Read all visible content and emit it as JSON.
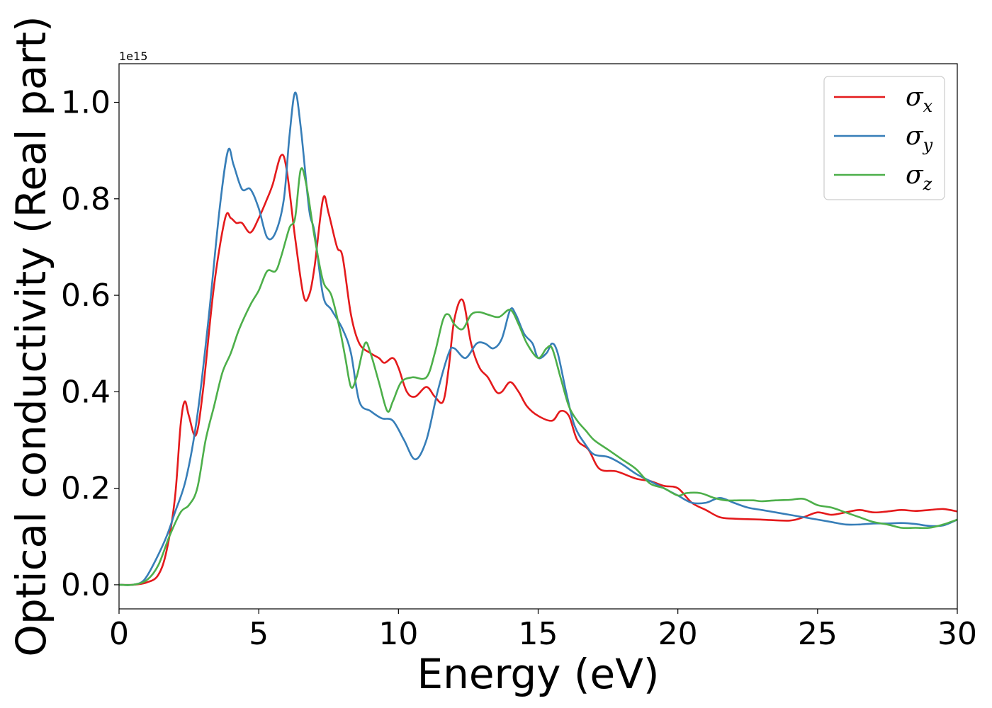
{
  "chart_data": {
    "type": "line",
    "title": "",
    "xlabel": "Energy (eV)",
    "ylabel": "Optical conductivity (Real part)",
    "y_offset_label": "1e15",
    "xlim": [
      0,
      30
    ],
    "ylim": [
      -0.05,
      1.08
    ],
    "x_ticks": [
      0,
      5,
      10,
      15,
      20,
      25,
      30
    ],
    "x_tick_labels": [
      "0",
      "5",
      "10",
      "15",
      "20",
      "25",
      "30"
    ],
    "y_ticks": [
      0.0,
      0.2,
      0.4,
      0.6,
      0.8,
      1.0
    ],
    "y_tick_labels": [
      "0.0",
      "0.2",
      "0.4",
      "0.6",
      "0.8",
      "1.0"
    ],
    "grid": false,
    "legend_position": "top-right",
    "series": [
      {
        "name": "σx",
        "legend_base": "σ",
        "legend_sub": "x",
        "color": "#e41a1c",
        "points": [
          [
            0,
            0
          ],
          [
            0.5,
            0
          ],
          [
            1,
            0.005
          ],
          [
            1.4,
            0.02
          ],
          [
            1.7,
            0.07
          ],
          [
            2,
            0.18
          ],
          [
            2.2,
            0.33
          ],
          [
            2.35,
            0.38
          ],
          [
            2.5,
            0.35
          ],
          [
            2.75,
            0.31
          ],
          [
            3,
            0.4
          ],
          [
            3.4,
            0.62
          ],
          [
            3.8,
            0.76
          ],
          [
            4,
            0.76
          ],
          [
            4.2,
            0.75
          ],
          [
            4.4,
            0.75
          ],
          [
            4.7,
            0.73
          ],
          [
            5,
            0.76
          ],
          [
            5.3,
            0.8
          ],
          [
            5.5,
            0.83
          ],
          [
            5.8,
            0.89
          ],
          [
            6,
            0.86
          ],
          [
            6.3,
            0.72
          ],
          [
            6.6,
            0.6
          ],
          [
            6.8,
            0.6
          ],
          [
            7,
            0.66
          ],
          [
            7.3,
            0.8
          ],
          [
            7.5,
            0.77
          ],
          [
            7.8,
            0.7
          ],
          [
            8,
            0.68
          ],
          [
            8.3,
            0.56
          ],
          [
            8.6,
            0.5
          ],
          [
            9,
            0.48
          ],
          [
            9.3,
            0.47
          ],
          [
            9.5,
            0.46
          ],
          [
            9.8,
            0.47
          ],
          [
            10,
            0.45
          ],
          [
            10.3,
            0.4
          ],
          [
            10.6,
            0.39
          ],
          [
            11,
            0.41
          ],
          [
            11.3,
            0.39
          ],
          [
            11.6,
            0.38
          ],
          [
            11.8,
            0.45
          ],
          [
            12,
            0.55
          ],
          [
            12.3,
            0.59
          ],
          [
            12.6,
            0.5
          ],
          [
            12.9,
            0.45
          ],
          [
            13.2,
            0.43
          ],
          [
            13.5,
            0.4
          ],
          [
            13.7,
            0.4
          ],
          [
            14,
            0.42
          ],
          [
            14.3,
            0.4
          ],
          [
            14.6,
            0.37
          ],
          [
            15,
            0.35
          ],
          [
            15.5,
            0.34
          ],
          [
            15.8,
            0.36
          ],
          [
            16.1,
            0.35
          ],
          [
            16.4,
            0.3
          ],
          [
            16.8,
            0.28
          ],
          [
            17.2,
            0.24
          ],
          [
            17.8,
            0.235
          ],
          [
            18.5,
            0.22
          ],
          [
            19,
            0.215
          ],
          [
            19.5,
            0.205
          ],
          [
            20,
            0.2
          ],
          [
            20.5,
            0.17
          ],
          [
            21,
            0.155
          ],
          [
            21.5,
            0.14
          ],
          [
            22,
            0.137
          ],
          [
            23,
            0.135
          ],
          [
            24,
            0.133
          ],
          [
            24.5,
            0.14
          ],
          [
            25,
            0.15
          ],
          [
            25.5,
            0.145
          ],
          [
            26,
            0.15
          ],
          [
            26.5,
            0.155
          ],
          [
            27,
            0.15
          ],
          [
            27.5,
            0.152
          ],
          [
            28,
            0.155
          ],
          [
            28.5,
            0.153
          ],
          [
            29,
            0.155
          ],
          [
            29.5,
            0.157
          ],
          [
            30,
            0.152
          ]
        ]
      },
      {
        "name": "σy",
        "legend_base": "σ",
        "legend_sub": "y",
        "color": "#377eb8",
        "points": [
          [
            0,
            0
          ],
          [
            0.5,
            0
          ],
          [
            0.9,
            0.01
          ],
          [
            1.3,
            0.05
          ],
          [
            1.7,
            0.1
          ],
          [
            2,
            0.15
          ],
          [
            2.4,
            0.22
          ],
          [
            2.8,
            0.35
          ],
          [
            3.2,
            0.55
          ],
          [
            3.6,
            0.78
          ],
          [
            3.9,
            0.9
          ],
          [
            4.1,
            0.87
          ],
          [
            4.4,
            0.82
          ],
          [
            4.7,
            0.82
          ],
          [
            5,
            0.78
          ],
          [
            5.3,
            0.72
          ],
          [
            5.6,
            0.73
          ],
          [
            5.9,
            0.8
          ],
          [
            6.1,
            0.93
          ],
          [
            6.3,
            1.02
          ],
          [
            6.5,
            0.95
          ],
          [
            6.8,
            0.78
          ],
          [
            7,
            0.73
          ],
          [
            7.3,
            0.6
          ],
          [
            7.6,
            0.57
          ],
          [
            8,
            0.53
          ],
          [
            8.3,
            0.48
          ],
          [
            8.6,
            0.38
          ],
          [
            9,
            0.36
          ],
          [
            9.4,
            0.345
          ],
          [
            9.8,
            0.34
          ],
          [
            10.2,
            0.3
          ],
          [
            10.6,
            0.26
          ],
          [
            11,
            0.3
          ],
          [
            11.4,
            0.4
          ],
          [
            11.8,
            0.48
          ],
          [
            12,
            0.49
          ],
          [
            12.4,
            0.47
          ],
          [
            12.8,
            0.5
          ],
          [
            13.1,
            0.5
          ],
          [
            13.4,
            0.49
          ],
          [
            13.7,
            0.51
          ],
          [
            14,
            0.57
          ],
          [
            14.2,
            0.56
          ],
          [
            14.5,
            0.52
          ],
          [
            14.8,
            0.5
          ],
          [
            15,
            0.47
          ],
          [
            15.3,
            0.48
          ],
          [
            15.5,
            0.5
          ],
          [
            15.7,
            0.48
          ],
          [
            16,
            0.4
          ],
          [
            16.3,
            0.33
          ],
          [
            16.7,
            0.29
          ],
          [
            17,
            0.27
          ],
          [
            17.5,
            0.265
          ],
          [
            18,
            0.25
          ],
          [
            18.5,
            0.23
          ],
          [
            19,
            0.215
          ],
          [
            19.5,
            0.2
          ],
          [
            20,
            0.185
          ],
          [
            20.5,
            0.17
          ],
          [
            21,
            0.17
          ],
          [
            21.5,
            0.18
          ],
          [
            22,
            0.17
          ],
          [
            22.5,
            0.16
          ],
          [
            23,
            0.155
          ],
          [
            23.5,
            0.15
          ],
          [
            24,
            0.145
          ],
          [
            24.5,
            0.14
          ],
          [
            25,
            0.135
          ],
          [
            25.5,
            0.13
          ],
          [
            26,
            0.125
          ],
          [
            26.5,
            0.125
          ],
          [
            27,
            0.127
          ],
          [
            27.5,
            0.127
          ],
          [
            28,
            0.128
          ],
          [
            28.5,
            0.126
          ],
          [
            29,
            0.122
          ],
          [
            29.5,
            0.123
          ],
          [
            30,
            0.135
          ]
        ]
      },
      {
        "name": "σz",
        "legend_base": "σ",
        "legend_sub": "z",
        "color": "#4daf4a",
        "points": [
          [
            0,
            0
          ],
          [
            0.5,
            0
          ],
          [
            1,
            0.01
          ],
          [
            1.4,
            0.04
          ],
          [
            1.8,
            0.1
          ],
          [
            2.2,
            0.15
          ],
          [
            2.5,
            0.165
          ],
          [
            2.8,
            0.2
          ],
          [
            3.1,
            0.3
          ],
          [
            3.4,
            0.37
          ],
          [
            3.7,
            0.44
          ],
          [
            4,
            0.48
          ],
          [
            4.3,
            0.53
          ],
          [
            4.7,
            0.58
          ],
          [
            5,
            0.61
          ],
          [
            5.3,
            0.65
          ],
          [
            5.6,
            0.65
          ],
          [
            5.8,
            0.68
          ],
          [
            6.1,
            0.74
          ],
          [
            6.3,
            0.76
          ],
          [
            6.5,
            0.86
          ],
          [
            6.7,
            0.83
          ],
          [
            7,
            0.72
          ],
          [
            7.3,
            0.63
          ],
          [
            7.6,
            0.6
          ],
          [
            7.9,
            0.53
          ],
          [
            8.1,
            0.47
          ],
          [
            8.3,
            0.41
          ],
          [
            8.5,
            0.43
          ],
          [
            8.8,
            0.5
          ],
          [
            9,
            0.48
          ],
          [
            9.3,
            0.42
          ],
          [
            9.6,
            0.36
          ],
          [
            9.8,
            0.38
          ],
          [
            10.1,
            0.42
          ],
          [
            10.5,
            0.43
          ],
          [
            11,
            0.43
          ],
          [
            11.3,
            0.48
          ],
          [
            11.6,
            0.55
          ],
          [
            11.8,
            0.56
          ],
          [
            12,
            0.54
          ],
          [
            12.3,
            0.53
          ],
          [
            12.6,
            0.56
          ],
          [
            12.9,
            0.565
          ],
          [
            13.2,
            0.56
          ],
          [
            13.6,
            0.555
          ],
          [
            14,
            0.57
          ],
          [
            14.3,
            0.54
          ],
          [
            14.6,
            0.5
          ],
          [
            15,
            0.47
          ],
          [
            15.3,
            0.49
          ],
          [
            15.5,
            0.49
          ],
          [
            15.8,
            0.43
          ],
          [
            16.1,
            0.37
          ],
          [
            16.4,
            0.34
          ],
          [
            16.7,
            0.32
          ],
          [
            17,
            0.3
          ],
          [
            17.5,
            0.28
          ],
          [
            18,
            0.26
          ],
          [
            18.5,
            0.24
          ],
          [
            19,
            0.21
          ],
          [
            19.5,
            0.2
          ],
          [
            20,
            0.185
          ],
          [
            20.3,
            0.19
          ],
          [
            20.8,
            0.19
          ],
          [
            21.3,
            0.18
          ],
          [
            21.7,
            0.175
          ],
          [
            22.2,
            0.175
          ],
          [
            22.7,
            0.175
          ],
          [
            23,
            0.173
          ],
          [
            23.5,
            0.175
          ],
          [
            24,
            0.176
          ],
          [
            24.5,
            0.178
          ],
          [
            25,
            0.165
          ],
          [
            25.5,
            0.16
          ],
          [
            26,
            0.15
          ],
          [
            26.5,
            0.14
          ],
          [
            27,
            0.13
          ],
          [
            27.5,
            0.125
          ],
          [
            28,
            0.118
          ],
          [
            28.5,
            0.118
          ],
          [
            29,
            0.118
          ],
          [
            29.5,
            0.125
          ],
          [
            30,
            0.135
          ]
        ]
      }
    ]
  }
}
